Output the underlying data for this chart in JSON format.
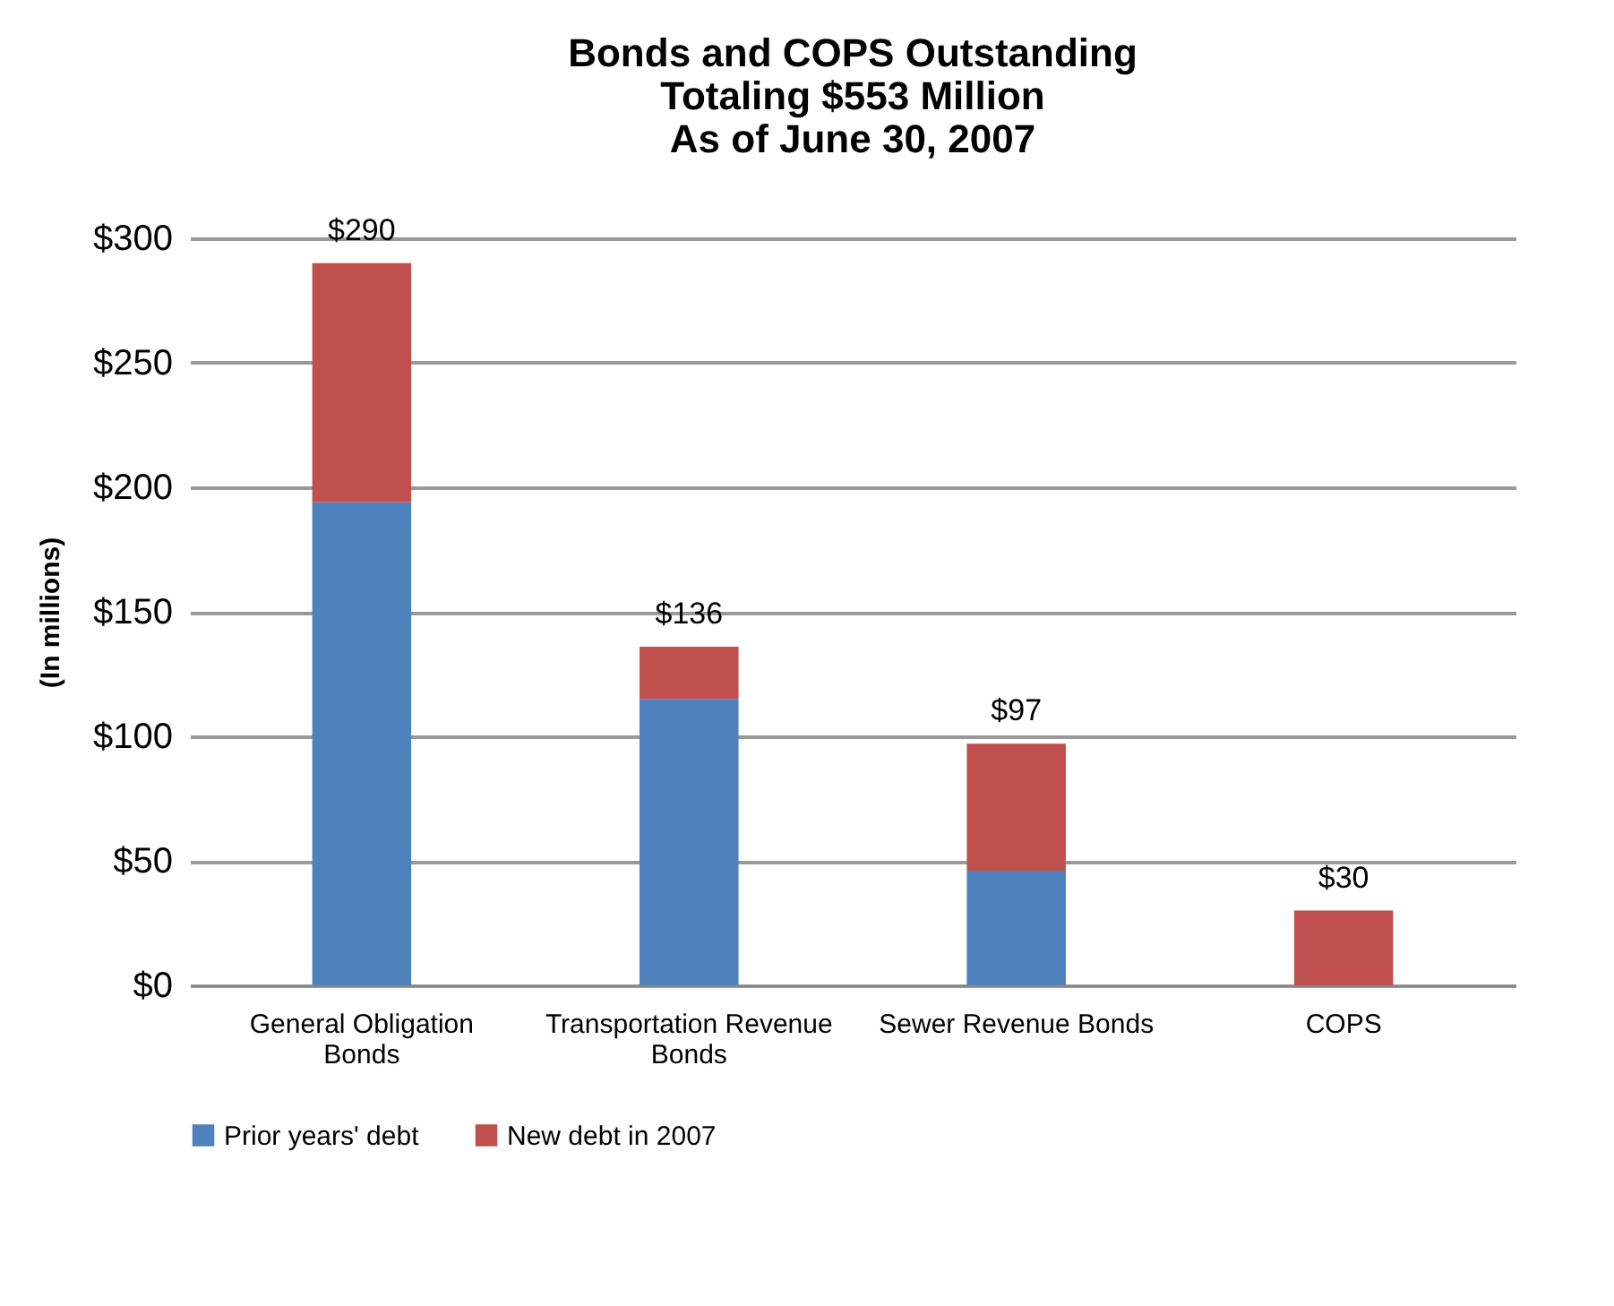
{
  "chart_data": {
    "type": "bar",
    "title": "Bonds and COPS Outstanding",
    "subtitle": "Totaling $553 Million\nAs of June 30, 2007",
    "ylabel": "(In millions)",
    "categories": [
      "General Obligation Bonds",
      "Transportation Revenue Bonds",
      "Sewer Revenue Bonds",
      "COPS"
    ],
    "series": [
      {
        "name": "Prior years' debt",
        "color": "#4f81bd",
        "values": [
          194,
          115,
          46,
          0
        ]
      },
      {
        "name": "New debt in 2007",
        "color": "#c0504d",
        "values": [
          96,
          21,
          51,
          30
        ]
      }
    ],
    "stacked": true,
    "totals": [
      "$290",
      "$136",
      "$97",
      "$30"
    ],
    "ylim": [
      0,
      300
    ],
    "yticks": [
      {
        "value": 0,
        "label": "$0"
      },
      {
        "value": 50,
        "label": "$50"
      },
      {
        "value": 100,
        "label": "$100"
      },
      {
        "value": 150,
        "label": "$150"
      },
      {
        "value": 200,
        "label": "$200"
      },
      {
        "value": 250,
        "label": "$250"
      },
      {
        "value": 300,
        "label": "$300"
      }
    ],
    "grid": "y",
    "legend": "bottom"
  }
}
